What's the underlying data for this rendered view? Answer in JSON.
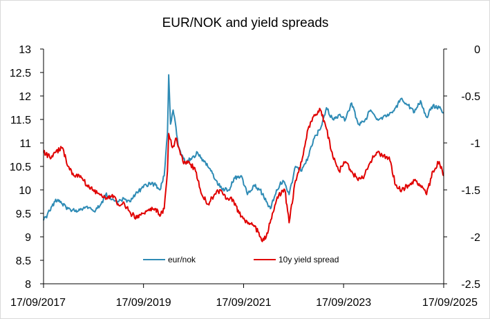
{
  "chart_data": {
    "type": "line",
    "title": "EUR/NOK and yield spreads",
    "x_ticks": [
      "17/09/2017",
      "17/09/2019",
      "17/09/2021",
      "17/09/2023",
      "17/09/2025"
    ],
    "xlim": [
      "17/09/2017",
      "17/09/2025"
    ],
    "y_left": {
      "ylim": [
        8,
        13
      ],
      "ticks": [
        "8",
        "8.5",
        "9",
        "9.5",
        "10",
        "10.5",
        "11",
        "11.5",
        "12",
        "12.5",
        "13"
      ]
    },
    "y_right": {
      "ylim": [
        -2.5,
        0
      ],
      "ticks": [
        "0",
        "-0.5",
        "-1",
        "-1.5",
        "-2",
        "-2.5"
      ]
    },
    "legend_position": "bottom-center",
    "grid": false,
    "series": [
      {
        "name": "eur/nok",
        "axis": "left",
        "color": "#2E8BB5",
        "points": [
          [
            "2017-09-17",
            9.35
          ],
          [
            "2017-11-01",
            9.55
          ],
          [
            "2017-12-15",
            9.8
          ],
          [
            "2018-02-01",
            9.7
          ],
          [
            "2018-03-15",
            9.6
          ],
          [
            "2018-05-01",
            9.55
          ],
          [
            "2018-06-15",
            9.6
          ],
          [
            "2018-08-01",
            9.65
          ],
          [
            "2018-09-15",
            9.55
          ],
          [
            "2018-11-01",
            9.65
          ],
          [
            "2018-12-15",
            9.9
          ],
          [
            "2019-02-01",
            9.8
          ],
          [
            "2019-03-15",
            9.75
          ],
          [
            "2019-05-01",
            9.8
          ],
          [
            "2019-06-15",
            9.75
          ],
          [
            "2019-08-01",
            9.95
          ],
          [
            "2019-09-15",
            10.05
          ],
          [
            "2019-11-01",
            10.15
          ],
          [
            "2019-12-15",
            10.1
          ],
          [
            "2020-01-15",
            10.0
          ],
          [
            "2020-02-15",
            10.3
          ],
          [
            "2020-03-10",
            11.2
          ],
          [
            "2020-03-19",
            12.45
          ],
          [
            "2020-04-01",
            11.4
          ],
          [
            "2020-04-20",
            11.7
          ],
          [
            "2020-06-01",
            10.9
          ],
          [
            "2020-07-15",
            10.6
          ],
          [
            "2020-09-01",
            10.65
          ],
          [
            "2020-10-15",
            10.8
          ],
          [
            "2020-12-01",
            10.6
          ],
          [
            "2021-01-15",
            10.45
          ],
          [
            "2021-03-01",
            10.2
          ],
          [
            "2021-04-15",
            10.0
          ],
          [
            "2021-06-01",
            10.0
          ],
          [
            "2021-07-15",
            10.25
          ],
          [
            "2021-09-01",
            10.3
          ],
          [
            "2021-10-15",
            9.9
          ],
          [
            "2021-12-01",
            10.1
          ],
          [
            "2022-01-15",
            10.0
          ],
          [
            "2022-03-01",
            9.75
          ],
          [
            "2022-04-01",
            9.6
          ],
          [
            "2022-05-15",
            10.0
          ],
          [
            "2022-07-01",
            10.2
          ],
          [
            "2022-08-15",
            9.9
          ],
          [
            "2022-10-01",
            10.5
          ],
          [
            "2022-11-15",
            10.4
          ],
          [
            "2023-01-01",
            10.7
          ],
          [
            "2023-02-15",
            11.1
          ],
          [
            "2023-04-01",
            11.3
          ],
          [
            "2023-05-15",
            11.75
          ],
          [
            "2023-07-01",
            11.5
          ],
          [
            "2023-08-15",
            11.6
          ],
          [
            "2023-10-01",
            11.5
          ],
          [
            "2023-11-15",
            11.85
          ],
          [
            "2024-01-01",
            11.4
          ],
          [
            "2024-02-15",
            11.45
          ],
          [
            "2024-04-01",
            11.7
          ],
          [
            "2024-05-15",
            11.5
          ],
          [
            "2024-07-01",
            11.55
          ],
          [
            "2024-08-15",
            11.6
          ],
          [
            "2024-10-01",
            11.75
          ],
          [
            "2024-11-15",
            11.95
          ],
          [
            "2025-01-01",
            11.8
          ],
          [
            "2025-02-15",
            11.65
          ],
          [
            "2025-04-01",
            11.9
          ],
          [
            "2025-05-15",
            11.55
          ],
          [
            "2025-07-01",
            11.8
          ],
          [
            "2025-08-15",
            11.75
          ],
          [
            "2025-09-17",
            11.65
          ]
        ]
      },
      {
        "name": "10y yield spread",
        "axis": "right",
        "color": "#E00000",
        "points": [
          [
            "2017-09-17",
            -1.1
          ],
          [
            "2017-11-01",
            -1.15
          ],
          [
            "2017-12-15",
            -1.1
          ],
          [
            "2018-02-01",
            -1.05
          ],
          [
            "2018-03-15",
            -1.25
          ],
          [
            "2018-05-01",
            -1.35
          ],
          [
            "2018-06-15",
            -1.35
          ],
          [
            "2018-08-01",
            -1.45
          ],
          [
            "2018-09-15",
            -1.5
          ],
          [
            "2018-11-01",
            -1.55
          ],
          [
            "2018-12-15",
            -1.6
          ],
          [
            "2019-02-01",
            -1.55
          ],
          [
            "2019-03-15",
            -1.65
          ],
          [
            "2019-05-01",
            -1.65
          ],
          [
            "2019-06-15",
            -1.75
          ],
          [
            "2019-08-01",
            -1.8
          ],
          [
            "2019-09-15",
            -1.75
          ],
          [
            "2019-11-01",
            -1.72
          ],
          [
            "2019-12-15",
            -1.7
          ],
          [
            "2020-01-15",
            -1.78
          ],
          [
            "2020-02-15",
            -1.7
          ],
          [
            "2020-03-10",
            -1.3
          ],
          [
            "2020-03-19",
            -0.9
          ],
          [
            "2020-04-15",
            -1.05
          ],
          [
            "2020-05-15",
            -0.95
          ],
          [
            "2020-07-01",
            -1.2
          ],
          [
            "2020-08-15",
            -1.2
          ],
          [
            "2020-10-01",
            -1.3
          ],
          [
            "2020-11-15",
            -1.55
          ],
          [
            "2021-01-01",
            -1.65
          ],
          [
            "2021-02-15",
            -1.55
          ],
          [
            "2021-04-01",
            -1.5
          ],
          [
            "2021-05-15",
            -1.6
          ],
          [
            "2021-07-01",
            -1.6
          ],
          [
            "2021-08-15",
            -1.75
          ],
          [
            "2021-10-01",
            -1.85
          ],
          [
            "2021-11-15",
            -1.85
          ],
          [
            "2022-01-01",
            -1.95
          ],
          [
            "2022-02-01",
            -2.05
          ],
          [
            "2022-03-01",
            -2.0
          ],
          [
            "2022-04-15",
            -1.75
          ],
          [
            "2022-06-01",
            -1.55
          ],
          [
            "2022-07-15",
            -1.5
          ],
          [
            "2022-08-15",
            -1.85
          ],
          [
            "2022-10-01",
            -1.4
          ],
          [
            "2022-11-15",
            -1.2
          ],
          [
            "2023-01-01",
            -0.85
          ],
          [
            "2023-02-15",
            -0.7
          ],
          [
            "2023-04-01",
            -0.65
          ],
          [
            "2023-05-15",
            -0.85
          ],
          [
            "2023-07-01",
            -1.15
          ],
          [
            "2023-08-15",
            -1.3
          ],
          [
            "2023-10-01",
            -1.2
          ],
          [
            "2023-11-15",
            -1.3
          ],
          [
            "2024-01-01",
            -1.4
          ],
          [
            "2024-02-15",
            -1.35
          ],
          [
            "2024-04-01",
            -1.2
          ],
          [
            "2024-05-15",
            -1.1
          ],
          [
            "2024-07-01",
            -1.15
          ],
          [
            "2024-08-15",
            -1.15
          ],
          [
            "2024-10-01",
            -1.45
          ],
          [
            "2024-11-15",
            -1.5
          ],
          [
            "2025-01-01",
            -1.45
          ],
          [
            "2025-02-15",
            -1.4
          ],
          [
            "2025-04-01",
            -1.45
          ],
          [
            "2025-05-15",
            -1.55
          ],
          [
            "2025-07-01",
            -1.3
          ],
          [
            "2025-08-15",
            -1.2
          ],
          [
            "2025-09-17",
            -1.35
          ]
        ]
      }
    ]
  }
}
